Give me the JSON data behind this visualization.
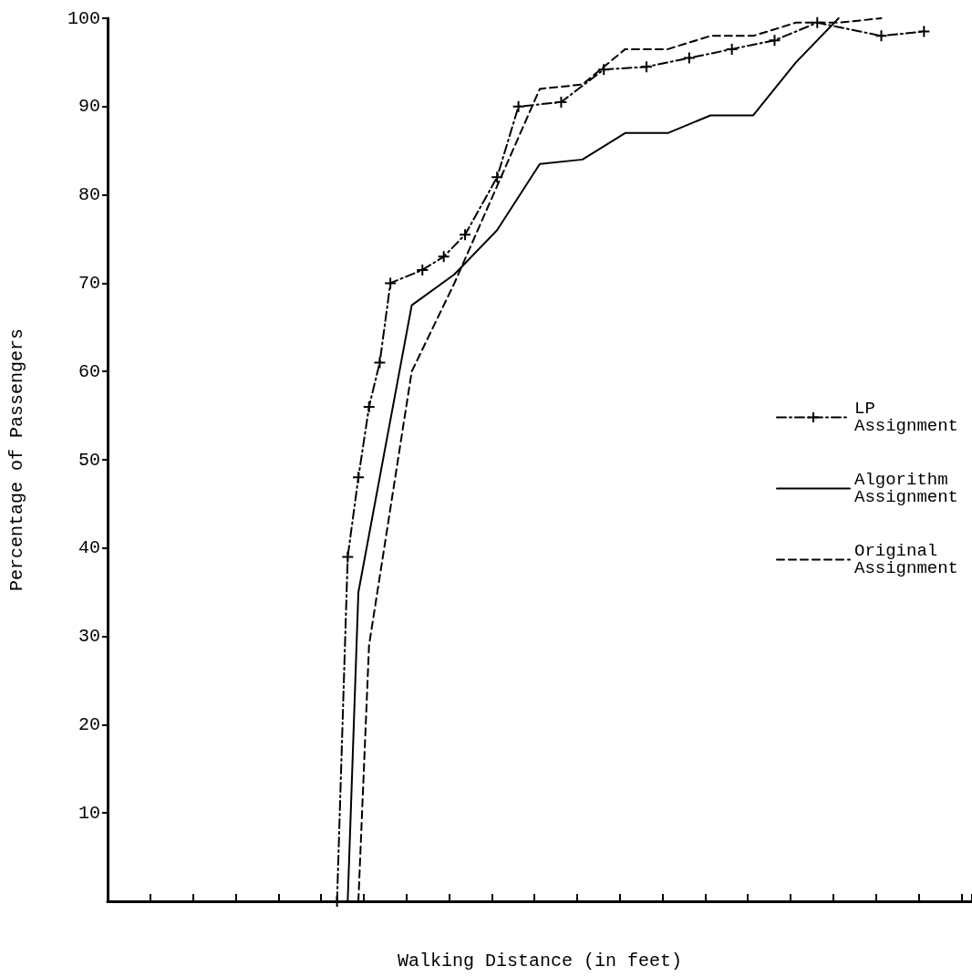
{
  "chart_data": {
    "type": "line",
    "xlabel": "Walking Distance (in feet)",
    "ylabel": "Percentage of Passengers",
    "categories": [
      null,
      null,
      null,
      null,
      null,
      null,
      null,
      null,
      null,
      null,
      null,
      null,
      null,
      null,
      null,
      null,
      null,
      null,
      null,
      null,
      null,
      null,
      null,
      null,
      null,
      null,
      null,
      null,
      null,
      null,
      null,
      null,
      null,
      null,
      null,
      null,
      null,
      null,
      null,
      null,
      null,
      null,
      null,
      null,
      null,
      null,
      null,
      null,
      null,
      null,
      null,
      null,
      null,
      null,
      null,
      null,
      null,
      null,
      null,
      null,
      null,
      null,
      null,
      null,
      null,
      null,
      null,
      null,
      null,
      null,
      null,
      null,
      null,
      null,
      null,
      null,
      null,
      null,
      null,
      null,
      null
    ],
    "ylim": [
      0,
      100
    ],
    "yticks": [
      10,
      20,
      30,
      40,
      50,
      60,
      70,
      80,
      90,
      100
    ],
    "grid": false,
    "legend": "right",
    "series": [
      {
        "name": "LP Assignment",
        "color": "#000000",
        "marker": "cross",
        "line_style": "dashdot",
        "values": [
          null,
          null,
          null,
          null,
          null,
          null,
          null,
          null,
          null,
          null,
          null,
          null,
          null,
          null,
          null,
          null,
          null,
          null,
          null,
          null,
          null,
          0,
          39,
          48,
          56,
          61,
          70,
          null,
          null,
          71.5,
          null,
          73,
          null,
          75.5,
          null,
          null,
          82,
          null,
          90,
          null,
          null,
          null,
          90.5,
          null,
          null,
          null,
          94.2,
          null,
          null,
          null,
          94.5,
          null,
          null,
          null,
          95.5,
          null,
          null,
          null,
          96.5,
          null,
          null,
          null,
          97.5,
          null,
          null,
          null,
          99.5,
          null,
          null,
          null,
          null,
          null,
          98,
          null,
          null,
          null,
          98.5,
          null,
          null,
          null,
          null
        ]
      },
      {
        "name": "Algorithm Assignment",
        "color": "#000000",
        "marker": "none",
        "line_style": "solid",
        "values": [
          null,
          null,
          null,
          null,
          null,
          null,
          null,
          null,
          null,
          null,
          null,
          null,
          null,
          null,
          null,
          null,
          null,
          null,
          null,
          null,
          null,
          null,
          0,
          35,
          null,
          null,
          null,
          null,
          67.5,
          null,
          null,
          null,
          71,
          null,
          null,
          null,
          76,
          null,
          null,
          null,
          83.5,
          null,
          null,
          null,
          84,
          null,
          null,
          null,
          87,
          null,
          null,
          null,
          87,
          null,
          null,
          null,
          89,
          null,
          null,
          null,
          89,
          null,
          null,
          null,
          95,
          null,
          null,
          null,
          100,
          null,
          null,
          null,
          null,
          null,
          null,
          null,
          null,
          null,
          null,
          null,
          null
        ]
      },
      {
        "name": "Original Assignment",
        "color": "#000000",
        "marker": "none",
        "line_style": "dashed",
        "values": [
          null,
          null,
          null,
          null,
          null,
          null,
          null,
          null,
          null,
          null,
          null,
          null,
          null,
          null,
          null,
          null,
          null,
          null,
          null,
          null,
          null,
          null,
          null,
          0,
          29,
          null,
          null,
          null,
          60,
          null,
          null,
          null,
          70,
          null,
          null,
          null,
          81,
          null,
          null,
          null,
          92,
          null,
          null,
          null,
          92.5,
          null,
          null,
          null,
          96.5,
          null,
          null,
          null,
          96.5,
          null,
          null,
          null,
          98,
          null,
          null,
          null,
          98,
          null,
          null,
          null,
          99.5,
          null,
          null,
          null,
          99.5,
          null,
          null,
          null,
          100,
          null,
          null,
          null,
          null,
          null,
          null,
          null,
          null
        ]
      }
    ]
  }
}
